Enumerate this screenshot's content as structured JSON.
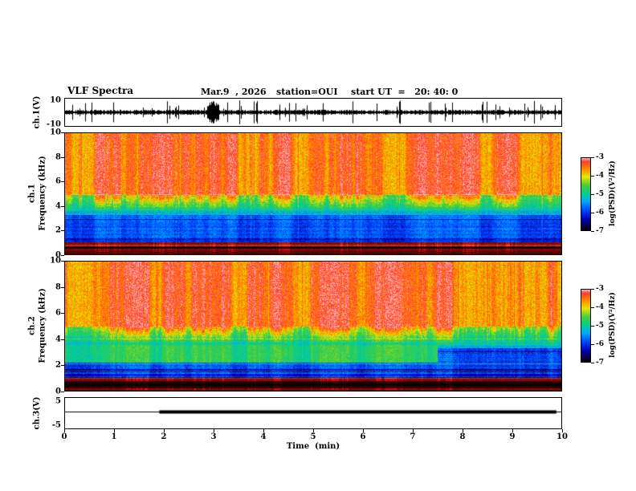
{
  "header": {
    "title": "VLF Spectra",
    "date": "Mar.9  , 2026",
    "station": "station=OUI",
    "start_ut": "start UT  =   20: 40: 0"
  },
  "axes": {
    "x": {
      "label": "Time  (min)",
      "ticks": [
        "0",
        "1",
        "2",
        "3",
        "4",
        "5",
        "6",
        "7",
        "8",
        "9",
        "10"
      ],
      "min": 0,
      "max": 10
    },
    "ch1_wave": {
      "ylabel": "ch.1(V)",
      "tick_top": "10",
      "tick_bottom": "-10"
    },
    "ch1_spec": {
      "ylabel_ch": "ch.1",
      "ylabel_freq": "Frequency (kHz)",
      "ticks": [
        "10",
        "8",
        "6",
        "4",
        "2",
        "0"
      ]
    },
    "ch2_spec": {
      "ylabel_ch": "ch.2",
      "ylabel_freq": "Frequency (kHz)",
      "ticks": [
        "10",
        "8",
        "6",
        "4",
        "2",
        "0"
      ]
    },
    "ch3": {
      "ylabel": "ch.3(V)",
      "tick_top": "5",
      "tick_bottom": "-5"
    }
  },
  "colorbars": [
    {
      "label": "log(PSD)(V²/Hz)",
      "ticks": [
        "-3",
        "-4",
        "-5",
        "-6",
        "-7"
      ]
    },
    {
      "label": "log(PSD)(V²/Hz)",
      "ticks": [
        "-3",
        "-4",
        "-5",
        "-6",
        "-7"
      ]
    }
  ],
  "chart_data": [
    {
      "type": "line",
      "name": "ch1-waveform",
      "ylabel": "ch.1(V)",
      "xlim": [
        0,
        10
      ],
      "ylim": [
        -10,
        10
      ],
      "burst_t": [
        2.85,
        3.1
      ],
      "description": "Broadband impulsive VLF noise around 0 V with frequent spikes reaching ±10 V and a dense saturated burst near t≈2.9–3.1 min"
    },
    {
      "type": "heatmap",
      "name": "ch1-spectrogram",
      "xlabel": "Time (min)",
      "ylabel": "Frequency (kHz)",
      "xlim": [
        0,
        10
      ],
      "ylim": [
        0,
        10
      ],
      "zlabel": "log(PSD)(V²/Hz)",
      "zlim": [
        -7,
        -3
      ],
      "bands": [
        {
          "f": [
            5,
            10
          ],
          "psd_mean": -3.6,
          "desc": "intense red/orange region with strong vertical streaking from impulsive sferics"
        },
        {
          "f": [
            3.3,
            5
          ],
          "psd_mean": -5.0,
          "desc": "yellow-green transition band with fluctuating upper edge"
        },
        {
          "f": [
            1.0,
            3.3
          ],
          "psd_mean": -6.2,
          "desc": "blue background crossed by horizontal interference lines"
        },
        {
          "f": [
            0,
            1.0
          ],
          "psd_mean": -3.2,
          "desc": "saturated dark-red and black horizontal bands at lowest frequencies"
        }
      ]
    },
    {
      "type": "heatmap",
      "name": "ch2-spectrogram",
      "xlabel": "Time (min)",
      "ylabel": "Frequency (kHz)",
      "xlim": [
        0,
        10
      ],
      "ylim": [
        0,
        10
      ],
      "zlabel": "log(PSD)(V²/Hz)",
      "zlim": [
        -7,
        -3
      ],
      "bands": [
        {
          "f": [
            5,
            10
          ],
          "psd_mean": -3.7,
          "desc": "red/orange region with vertical streaking"
        },
        {
          "f": [
            3.3,
            5
          ],
          "psd_mean": -5.0,
          "desc": "yellow-green transition band"
        },
        {
          "f": [
            1.0,
            3.3
          ],
          "psd_mean": -6.0,
          "desc": "blue/green background with horizontal interference lines"
        },
        {
          "f": [
            0,
            1.0
          ],
          "psd_mean": -3.4,
          "desc": "dark-red and black bands at lowest frequencies"
        }
      ],
      "patch": {
        "t": [
          0,
          7.5
        ],
        "f": [
          2.2,
          3.6
        ],
        "psd_mean": -5.2,
        "desc": "darker green patch that ends near t≈7.5 min"
      }
    },
    {
      "type": "line",
      "name": "ch3-level",
      "ylabel": "ch.3(V)",
      "xlim": [
        0,
        10
      ],
      "ylim": [
        -5,
        5
      ],
      "segments": [
        {
          "t": [
            0,
            10
          ],
          "v": 0.4,
          "width": "thin"
        },
        {
          "t": [
            1.9,
            9.9
          ],
          "v": 0.4,
          "width": "thick"
        }
      ]
    }
  ]
}
